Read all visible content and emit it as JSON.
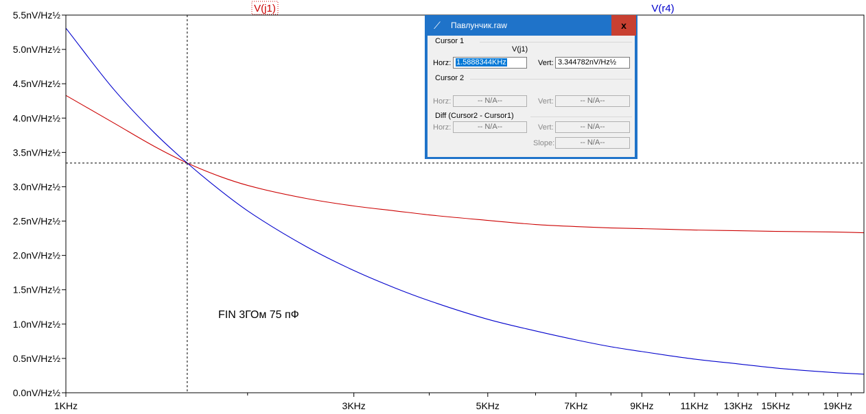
{
  "chart_data": {
    "type": "line",
    "x_scale": "log",
    "x_range": [
      1000,
      21000
    ],
    "ylim": [
      0,
      5.5
    ],
    "y_ticks": [
      "0.0nV/Hz½",
      "0.5nV/Hz½",
      "1.0nV/Hz½",
      "1.5nV/Hz½",
      "2.0nV/Hz½",
      "2.5nV/Hz½",
      "3.0nV/Hz½",
      "3.5nV/Hz½",
      "4.0nV/Hz½",
      "4.5nV/Hz½",
      "5.0nV/Hz½",
      "5.5nV/Hz½"
    ],
    "y_tick_values": [
      0,
      0.5,
      1.0,
      1.5,
      2.0,
      2.5,
      3.0,
      3.5,
      4.0,
      4.5,
      5.0,
      5.5
    ],
    "x_ticks": [
      "1KHz",
      "3KHz",
      "5KHz",
      "7KHz",
      "9KHz",
      "11KHz",
      "13KHz",
      "15KHz",
      "19KHz"
    ],
    "x_tick_values": [
      1000,
      3000,
      5000,
      7000,
      9000,
      11000,
      13000,
      15000,
      19000
    ],
    "series": [
      {
        "name": "V(j1)",
        "color": "#cc0000",
        "x": [
          1000,
          1200,
          1400,
          1588.8,
          1800,
          2000,
          2500,
          3000,
          3500,
          4000,
          5000,
          6000,
          7000,
          8000,
          9000,
          10000,
          11000,
          13000,
          15000,
          17000,
          19000,
          21000
        ],
        "y": [
          4.33,
          3.93,
          3.59,
          3.345,
          3.15,
          3.02,
          2.83,
          2.72,
          2.65,
          2.59,
          2.51,
          2.45,
          2.42,
          2.4,
          2.39,
          2.38,
          2.37,
          2.36,
          2.35,
          2.345,
          2.34,
          2.33
        ]
      },
      {
        "name": "V(r4)",
        "color": "#0000cc",
        "x": [
          1000,
          1200,
          1400,
          1588.8,
          1800,
          2000,
          2500,
          3000,
          3500,
          4000,
          5000,
          6000,
          7000,
          8000,
          9000,
          10000,
          11000,
          13000,
          15000,
          17000,
          19000,
          21000
        ],
        "y": [
          5.31,
          4.42,
          3.79,
          3.345,
          2.95,
          2.65,
          2.13,
          1.78,
          1.53,
          1.34,
          1.07,
          0.9,
          0.77,
          0.67,
          0.6,
          0.54,
          0.49,
          0.42,
          0.36,
          0.32,
          0.29,
          0.27
        ]
      }
    ],
    "cursor": {
      "x": 1588.8344,
      "y": 3.344782
    },
    "annotation": "FIN 3ГОм 75 пФ",
    "grid": false
  },
  "dialog": {
    "title": "Павлунчик.raw",
    "close_label": "x",
    "cursor1": {
      "group": "Cursor 1",
      "trace": "V(j1)",
      "horz_label": "Horz:",
      "horz_value": "1.5888344KHz",
      "vert_label": "Vert:",
      "vert_value": "3.344782nV/Hz½"
    },
    "cursor2": {
      "group": "Cursor 2",
      "horz_label": "Horz:",
      "horz_value": "-- N/A--",
      "vert_label": "Vert:",
      "vert_value": "-- N/A--"
    },
    "diff": {
      "group": "Diff (Cursor2 - Cursor1)",
      "horz_label": "Horz:",
      "horz_value": "-- N/A--",
      "vert_label": "Vert:",
      "vert_value": "-- N/A--",
      "slope_label": "Slope:",
      "slope_value": "-- N/A--"
    }
  }
}
